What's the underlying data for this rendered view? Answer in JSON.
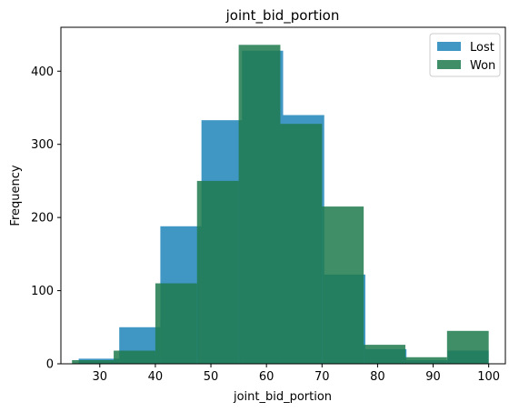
{
  "chart_data": {
    "type": "bar",
    "title": "joint_bid_portion",
    "xlabel": "joint_bid_portion",
    "ylabel": "Frequency",
    "xlim": [
      23,
      103
    ],
    "ylim": [
      0,
      460
    ],
    "xticks": [
      30,
      40,
      50,
      60,
      70,
      80,
      90,
      100
    ],
    "yticks": [
      0,
      100,
      200,
      300,
      400
    ],
    "legend_position": "top-right",
    "series": [
      {
        "name": "Lost",
        "color": "#2b8cbe",
        "opacity": 0.9,
        "bins": [
          {
            "x0": 26.2,
            "x1": 33.5,
            "count": 7
          },
          {
            "x0": 33.5,
            "x1": 40.9,
            "count": 50
          },
          {
            "x0": 40.9,
            "x1": 48.3,
            "count": 188
          },
          {
            "x0": 48.3,
            "x1": 55.6,
            "count": 333
          },
          {
            "x0": 55.6,
            "x1": 63.0,
            "count": 428
          },
          {
            "x0": 63.0,
            "x1": 70.4,
            "count": 340
          },
          {
            "x0": 70.4,
            "x1": 77.8,
            "count": 122
          },
          {
            "x0": 77.8,
            "x1": 85.2,
            "count": 20
          },
          {
            "x0": 85.2,
            "x1": 92.6,
            "count": 5
          },
          {
            "x0": 92.6,
            "x1": 100.0,
            "count": 18
          }
        ]
      },
      {
        "name": "Won",
        "color": "#1f7a4d",
        "opacity": 0.85,
        "bins": [
          {
            "x0": 25.0,
            "x1": 32.5,
            "count": 5
          },
          {
            "x0": 32.5,
            "x1": 40.0,
            "count": 18
          },
          {
            "x0": 40.0,
            "x1": 47.5,
            "count": 110
          },
          {
            "x0": 47.5,
            "x1": 55.0,
            "count": 250
          },
          {
            "x0": 55.0,
            "x1": 62.5,
            "count": 436
          },
          {
            "x0": 62.5,
            "x1": 70.0,
            "count": 328
          },
          {
            "x0": 70.0,
            "x1": 77.5,
            "count": 215
          },
          {
            "x0": 77.5,
            "x1": 85.0,
            "count": 26
          },
          {
            "x0": 85.0,
            "x1": 92.5,
            "count": 9
          },
          {
            "x0": 92.5,
            "x1": 100.0,
            "count": 45
          }
        ]
      }
    ]
  }
}
